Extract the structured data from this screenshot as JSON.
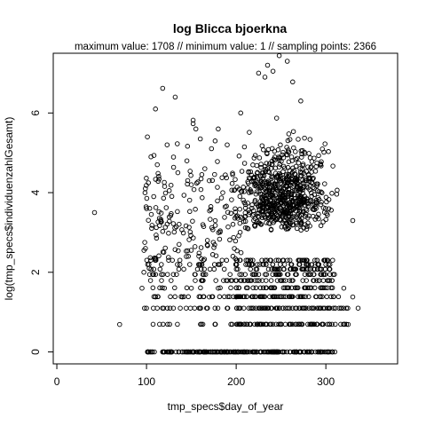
{
  "chart_data": {
    "type": "scatter",
    "title": "log Blicca bjoerkna",
    "subtitle": "maximum value: 1708  //  minimum value: 1  // sampling points: 2366",
    "xlabel": "tmp_specs$day_of_year",
    "ylabel": "log(tmp_specs$individuenzahlGesamt)",
    "xlim": [
      -4,
      380
    ],
    "ylim": [
      -0.3,
      7.5
    ],
    "xticks": [
      "0",
      "100",
      "200",
      "300"
    ],
    "yticks": [
      "0",
      "2",
      "4",
      "6"
    ],
    "marker": "open-circle",
    "grid": false,
    "legend": "none",
    "stats": {
      "max_value": 1708,
      "min_value": 1,
      "sampling_points": 2366
    },
    "points": [
      [
        42,
        3.5
      ],
      [
        70,
        0.69
      ],
      [
        336,
        1.1
      ],
      [
        330,
        3.3
      ],
      [
        248,
        7.44
      ],
      [
        235,
        7.2
      ],
      [
        241,
        7.05
      ],
      [
        257,
        7.3
      ],
      [
        232,
        6.9
      ],
      [
        225,
        7.0
      ],
      [
        263,
        6.78
      ],
      [
        272,
        6.3
      ],
      [
        118,
        6.62
      ],
      [
        132,
        6.4
      ],
      [
        110,
        6.1
      ],
      [
        152,
        5.82
      ],
      [
        152,
        5.73
      ],
      [
        101,
        5.4
      ],
      [
        123,
        5.2
      ],
      [
        180,
        5.6
      ],
      [
        190,
        5.2
      ],
      [
        205,
        6.0
      ],
      [
        160,
        5.35
      ],
      [
        155,
        5.6
      ],
      [
        145,
        4.8
      ],
      [
        165,
        4.6
      ],
      [
        170,
        4.3
      ],
      [
        185,
        4.0
      ],
      [
        150,
        4.2
      ],
      [
        135,
        4.5
      ],
      [
        105,
        4.9
      ],
      [
        112,
        4.7
      ],
      [
        100,
        3.6
      ],
      [
        108,
        3.9
      ],
      [
        98,
        2.75
      ],
      [
        103,
        2.1
      ],
      [
        97,
        2.0
      ],
      [
        95,
        1.6
      ],
      [
        100,
        1.1
      ],
      [
        110,
        1.38
      ],
      [
        120,
        1.6
      ],
      [
        130,
        1.1
      ],
      [
        140,
        1.38
      ],
      [
        150,
        1.6
      ],
      [
        160,
        1.1
      ],
      [
        170,
        1.38
      ],
      [
        180,
        1.6
      ],
      [
        190,
        1.1
      ],
      [
        200,
        1.38
      ],
      [
        320,
        1.6
      ],
      [
        330,
        1.38
      ],
      [
        325,
        0.69
      ],
      [
        310,
        0.0
      ],
      [
        300,
        0.0
      ]
    ]
  }
}
